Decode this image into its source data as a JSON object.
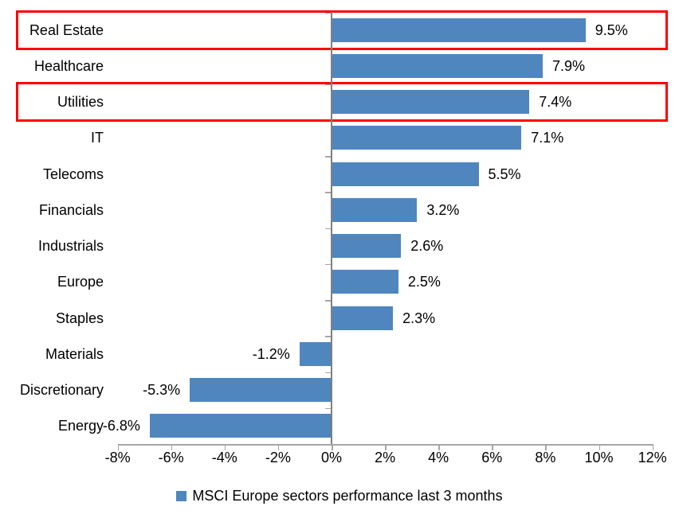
{
  "chart_data": {
    "type": "bar",
    "orientation": "horizontal",
    "title": "",
    "xlabel": "",
    "ylabel": "",
    "categories": [
      "Real Estate",
      "Healthcare",
      "Utilities",
      "IT",
      "Telecoms",
      "Financials",
      "Industrials",
      "Europe",
      "Staples",
      "Materials",
      "Discretionary",
      "Energy"
    ],
    "values": [
      9.5,
      7.9,
      7.4,
      7.1,
      5.5,
      3.2,
      2.6,
      2.5,
      2.3,
      -1.2,
      -5.3,
      -6.8
    ],
    "data_labels": [
      "9.5%",
      "7.9%",
      "7.4%",
      "7.1%",
      "5.5%",
      "3.2%",
      "2.6%",
      "2.5%",
      "2.3%",
      "-1.2%",
      "-5.3%",
      "-6.8%"
    ],
    "xlim": [
      -8,
      12
    ],
    "x_tick_values": [
      -8,
      -6,
      -4,
      -2,
      0,
      2,
      4,
      6,
      8,
      10,
      12
    ],
    "x_ticks": [
      "-8%",
      "-6%",
      "-4%",
      "-2%",
      "0%",
      "2%",
      "4%",
      "6%",
      "8%",
      "10%",
      "12%"
    ],
    "grid": false,
    "legend_position": "bottom",
    "legend": "MSCI Europe sectors performance last 3 months",
    "bar_color": "#4f86be",
    "axis_color": "#a6a6a6",
    "highlight_color": "#ff0000",
    "highlighted_categories": [
      "Real Estate",
      "Utilities"
    ]
  }
}
